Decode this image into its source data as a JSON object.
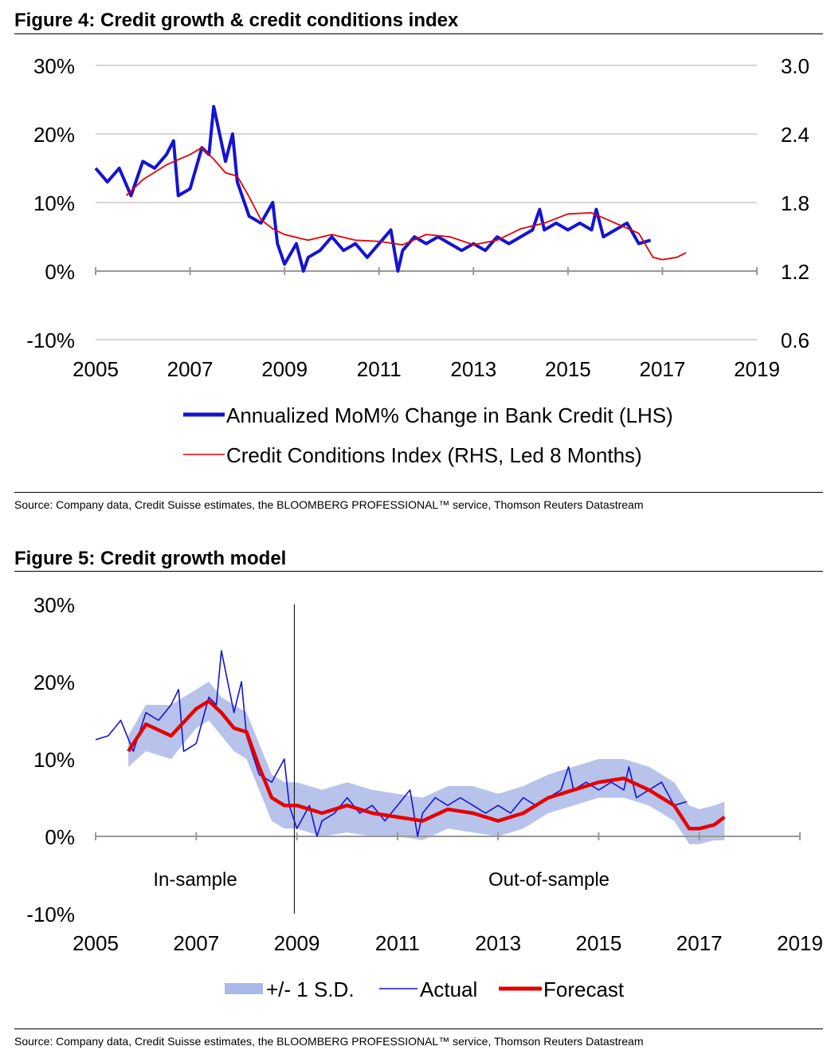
{
  "figure4": {
    "title": "Figure 4: Credit growth & credit conditions index",
    "source": "Source: Company data, Credit Suisse estimates, the BLOOMBERG PROFESSIONAL™ service, Thomson Reuters Datastream"
  },
  "figure5": {
    "title": "Figure 5: Credit growth model",
    "source": "Source: Company data, Credit Suisse estimates, the BLOOMBERG PROFESSIONAL™ service, Thomson Reuters Datastream"
  },
  "colors": {
    "actual": "#1414d2",
    "forecast": "#e60000",
    "band": "#aab8e8",
    "grid": "#c8c8c8",
    "axis": "#999999"
  },
  "chart_data": [
    {
      "type": "line",
      "title": "Figure 4: Credit growth & credit conditions index",
      "xlim": [
        2005,
        2019
      ],
      "x_ticks": [
        "2005",
        "2007",
        "2009",
        "2011",
        "2013",
        "2015",
        "2017",
        "2019"
      ],
      "ylim_left": [
        -10,
        30
      ],
      "y_ticks_left": [
        "30%",
        "20%",
        "10%",
        "0%",
        "-10%"
      ],
      "ylim_right": [
        0.6,
        3.0
      ],
      "y_ticks_right": [
        "3.0",
        "2.4",
        "1.8",
        "1.2",
        "0.6"
      ],
      "grid": true,
      "legend_position": "bottom-center",
      "series": [
        {
          "name": "Annualized MoM% Change in Bank Credit (LHS)",
          "axis": "left",
          "x": [
            2005.0,
            2005.25,
            2005.5,
            2005.75,
            2005.85,
            2006.0,
            2006.25,
            2006.5,
            2006.65,
            2006.75,
            2007.0,
            2007.25,
            2007.4,
            2007.5,
            2007.75,
            2007.9,
            2008.0,
            2008.25,
            2008.5,
            2008.75,
            2008.85,
            2009.0,
            2009.25,
            2009.4,
            2009.5,
            2009.75,
            2010.0,
            2010.25,
            2010.5,
            2010.75,
            2011.0,
            2011.25,
            2011.4,
            2011.5,
            2011.75,
            2012.0,
            2012.25,
            2012.5,
            2012.75,
            2013.0,
            2013.25,
            2013.5,
            2013.75,
            2014.0,
            2014.25,
            2014.4,
            2014.5,
            2014.75,
            2015.0,
            2015.25,
            2015.5,
            2015.6,
            2015.75,
            2016.0,
            2016.25,
            2016.5,
            2016.75
          ],
          "values": [
            15,
            13,
            15,
            11,
            13,
            16,
            15,
            17,
            19,
            11,
            12,
            18,
            17,
            24,
            16,
            20,
            13,
            8,
            7,
            10,
            4,
            1,
            4,
            0,
            2,
            3,
            5,
            3,
            4,
            2,
            4,
            6,
            0,
            3,
            5,
            4,
            5,
            4,
            3,
            4,
            3,
            5,
            4,
            5,
            6,
            9,
            6,
            7,
            6,
            7,
            6,
            9,
            5,
            6,
            7,
            4,
            4.5
          ]
        },
        {
          "name": "Credit Conditions Index (RHS, Led 8 Months)",
          "axis": "right",
          "x": [
            2005.65,
            2006.0,
            2006.5,
            2007.0,
            2007.25,
            2007.5,
            2007.75,
            2008.0,
            2008.25,
            2008.5,
            2008.75,
            2009.0,
            2009.5,
            2010.0,
            2010.5,
            2011.0,
            2011.5,
            2012.0,
            2012.5,
            2013.0,
            2013.5,
            2014.0,
            2014.5,
            2015.0,
            2015.5,
            2016.0,
            2016.5,
            2016.8,
            2017.0,
            2017.3,
            2017.5
          ],
          "values": [
            1.86,
            2.0,
            2.13,
            2.22,
            2.28,
            2.18,
            2.06,
            2.03,
            1.85,
            1.65,
            1.57,
            1.52,
            1.47,
            1.52,
            1.47,
            1.46,
            1.43,
            1.52,
            1.5,
            1.43,
            1.47,
            1.57,
            1.62,
            1.7,
            1.71,
            1.62,
            1.53,
            1.32,
            1.3,
            1.32,
            1.36
          ]
        }
      ]
    },
    {
      "type": "line",
      "title": "Figure 5: Credit growth model",
      "xlim": [
        2005,
        2019
      ],
      "x_ticks": [
        "2005",
        "2007",
        "2009",
        "2011",
        "2013",
        "2015",
        "2017",
        "2019"
      ],
      "ylim": [
        -10,
        30
      ],
      "y_ticks": [
        "30%",
        "20%",
        "10%",
        "0%",
        "-10%"
      ],
      "grid": false,
      "legend_position": "bottom-center",
      "annotations": [
        {
          "text": "In-sample",
          "x": 2007.0,
          "y": -5
        },
        {
          "text": "Out-of-sample",
          "x": 2014.0,
          "y": -5
        }
      ],
      "vertical_line_x": 2008.95,
      "series": [
        {
          "name": "+/- 1 S.D.",
          "type": "band",
          "x": [
            2005.65,
            2006.0,
            2006.5,
            2007.0,
            2007.25,
            2007.5,
            2007.75,
            2008.0,
            2008.25,
            2008.5,
            2008.75,
            2009.0,
            2009.5,
            2010.0,
            2010.5,
            2011.0,
            2011.5,
            2012.0,
            2012.5,
            2013.0,
            2013.5,
            2014.0,
            2014.5,
            2015.0,
            2015.5,
            2016.0,
            2016.5,
            2016.8,
            2017.0,
            2017.3,
            2017.5
          ],
          "lower": [
            9,
            11,
            10,
            14,
            15,
            13,
            11,
            10,
            6,
            2,
            1,
            1,
            0,
            0.5,
            0,
            0,
            -0.5,
            1,
            0.5,
            0,
            1,
            3,
            4,
            5,
            5,
            4,
            2,
            -1,
            -1,
            -0.5,
            -0.5
          ],
          "upper": [
            13,
            17,
            17,
            19,
            20,
            18,
            17,
            16,
            12,
            8,
            7,
            7,
            6,
            7,
            6,
            5.5,
            5,
            6.5,
            6.5,
            5.5,
            6.5,
            8,
            9,
            10,
            10,
            9,
            7,
            4,
            3.5,
            4,
            4.5
          ]
        },
        {
          "name": "Actual",
          "type": "line",
          "x": [
            2005.0,
            2005.25,
            2005.5,
            2005.75,
            2005.85,
            2006.0,
            2006.25,
            2006.5,
            2006.65,
            2006.75,
            2007.0,
            2007.25,
            2007.4,
            2007.5,
            2007.75,
            2007.9,
            2008.0,
            2008.25,
            2008.5,
            2008.75,
            2008.85,
            2009.0,
            2009.25,
            2009.4,
            2009.5,
            2009.75,
            2010.0,
            2010.25,
            2010.5,
            2010.75,
            2011.0,
            2011.25,
            2011.4,
            2011.5,
            2011.75,
            2012.0,
            2012.25,
            2012.5,
            2012.75,
            2013.0,
            2013.25,
            2013.5,
            2013.75,
            2014.0,
            2014.25,
            2014.4,
            2014.5,
            2014.75,
            2015.0,
            2015.25,
            2015.5,
            2015.6,
            2015.75,
            2016.0,
            2016.25,
            2016.5,
            2016.75
          ],
          "values": [
            12.5,
            13,
            15,
            11,
            13,
            16,
            15,
            17,
            19,
            11,
            12,
            18,
            17,
            24,
            16,
            20,
            13,
            8,
            7,
            10,
            4,
            1,
            4,
            0,
            2,
            3,
            5,
            3,
            4,
            2,
            4,
            6,
            0,
            3,
            5,
            4,
            5,
            4,
            3,
            4,
            3,
            5,
            4,
            5,
            6,
            9,
            6,
            7,
            6,
            7,
            6,
            9,
            5,
            6,
            7,
            4,
            4.5
          ]
        },
        {
          "name": "Forecast",
          "type": "line",
          "x": [
            2005.65,
            2006.0,
            2006.5,
            2007.0,
            2007.25,
            2007.5,
            2007.75,
            2008.0,
            2008.25,
            2008.5,
            2008.75,
            2009.0,
            2009.5,
            2010.0,
            2010.5,
            2011.0,
            2011.5,
            2012.0,
            2012.5,
            2013.0,
            2013.5,
            2014.0,
            2014.5,
            2015.0,
            2015.5,
            2016.0,
            2016.5,
            2016.8,
            2017.0,
            2017.3,
            2017.5
          ],
          "values": [
            11,
            14.5,
            13,
            16.5,
            17.5,
            16,
            14,
            13.5,
            9,
            5,
            4,
            4,
            3,
            4,
            3,
            2.5,
            2,
            3.5,
            3,
            2,
            3,
            5,
            6,
            7,
            7.5,
            6,
            4,
            1,
            1,
            1.5,
            2.5
          ]
        }
      ]
    }
  ]
}
